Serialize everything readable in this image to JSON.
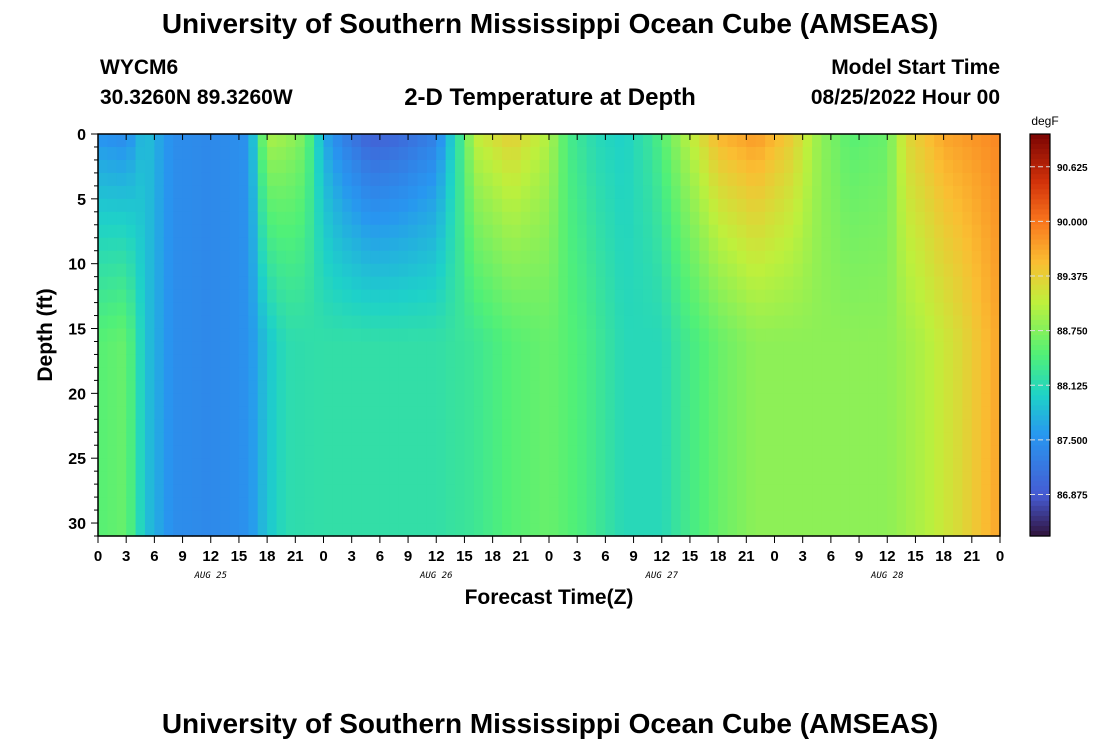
{
  "header": {
    "title": "University of Southern Mississippi Ocean Cube (AMSEAS)",
    "station": "WYCM6",
    "location": "30.3260N  89.3260W",
    "subtitle": "2-D Temperature at Depth",
    "model_start_label": "Model Start Time",
    "model_start_value": "08/25/2022 Hour 00"
  },
  "footer": {
    "title": "University of Southern Mississippi Ocean Cube (AMSEAS)"
  },
  "colorbar": {
    "unit": "degF",
    "ticks": [
      "90.625",
      "90.000",
      "89.375",
      "88.750",
      "88.125",
      "87.500",
      "86.875"
    ],
    "tick_values": [
      90.625,
      90.0,
      89.375,
      88.75,
      88.125,
      87.5,
      86.875
    ],
    "range": [
      86.4,
      91.0
    ]
  },
  "chart_data": {
    "type": "heatmap",
    "title": "2-D Temperature at Depth",
    "xlabel": "Forecast Time(Z)",
    "ylabel": "Depth (ft)",
    "units": "degF",
    "x_hours_range": [
      0,
      96
    ],
    "y_range": [
      0,
      31
    ],
    "y_ticks": [
      0,
      5,
      10,
      15,
      20,
      25,
      30
    ],
    "x_tick_labels": [
      "0",
      "3",
      "6",
      "9",
      "12",
      "15",
      "18",
      "21",
      "0",
      "3",
      "6",
      "9",
      "12",
      "15",
      "18",
      "21",
      "0",
      "3",
      "6",
      "9",
      "12",
      "15",
      "18",
      "21",
      "0",
      "3",
      "6",
      "9",
      "12",
      "15",
      "18",
      "21",
      "0"
    ],
    "date_labels": [
      "AUG 25",
      "AUG 26",
      "AUG 27",
      "AUG 28"
    ],
    "surface_temp_by_hour": [
      [
        0,
        87.5
      ],
      [
        3,
        87.4
      ],
      [
        5,
        87.9
      ],
      [
        8,
        87.45
      ],
      [
        12,
        87.4
      ],
      [
        16,
        87.5
      ],
      [
        18,
        89.0
      ],
      [
        20,
        88.9
      ],
      [
        22,
        88.7
      ],
      [
        24,
        87.7
      ],
      [
        26,
        87.3
      ],
      [
        29,
        86.9
      ],
      [
        32,
        87.0
      ],
      [
        36,
        87.3
      ],
      [
        39,
        88.5
      ],
      [
        40,
        89.1
      ],
      [
        44,
        89.4
      ],
      [
        48,
        89.0
      ],
      [
        50,
        88.4
      ],
      [
        53,
        88.1
      ],
      [
        56,
        88.0
      ],
      [
        59,
        88.3
      ],
      [
        62,
        88.9
      ],
      [
        66,
        89.6
      ],
      [
        70,
        89.8
      ],
      [
        74,
        89.4
      ],
      [
        77,
        88.8
      ],
      [
        80,
        88.5
      ],
      [
        84,
        88.6
      ],
      [
        86,
        89.3
      ],
      [
        90,
        89.7
      ],
      [
        96,
        89.9
      ]
    ],
    "bottom_temp_by_hour": [
      [
        0,
        88.5
      ],
      [
        3,
        88.6
      ],
      [
        5,
        87.9
      ],
      [
        8,
        87.45
      ],
      [
        12,
        87.4
      ],
      [
        16,
        87.5
      ],
      [
        18,
        87.9
      ],
      [
        20,
        88.15
      ],
      [
        24,
        88.2
      ],
      [
        30,
        88.2
      ],
      [
        36,
        88.2
      ],
      [
        40,
        88.3
      ],
      [
        44,
        88.5
      ],
      [
        48,
        88.6
      ],
      [
        52,
        88.4
      ],
      [
        56,
        88.1
      ],
      [
        60,
        88.1
      ],
      [
        62,
        88.3
      ],
      [
        66,
        88.6
      ],
      [
        70,
        88.8
      ],
      [
        74,
        88.8
      ],
      [
        78,
        88.8
      ],
      [
        84,
        88.8
      ],
      [
        88,
        89.0
      ],
      [
        92,
        89.3
      ],
      [
        96,
        89.7
      ]
    ]
  }
}
